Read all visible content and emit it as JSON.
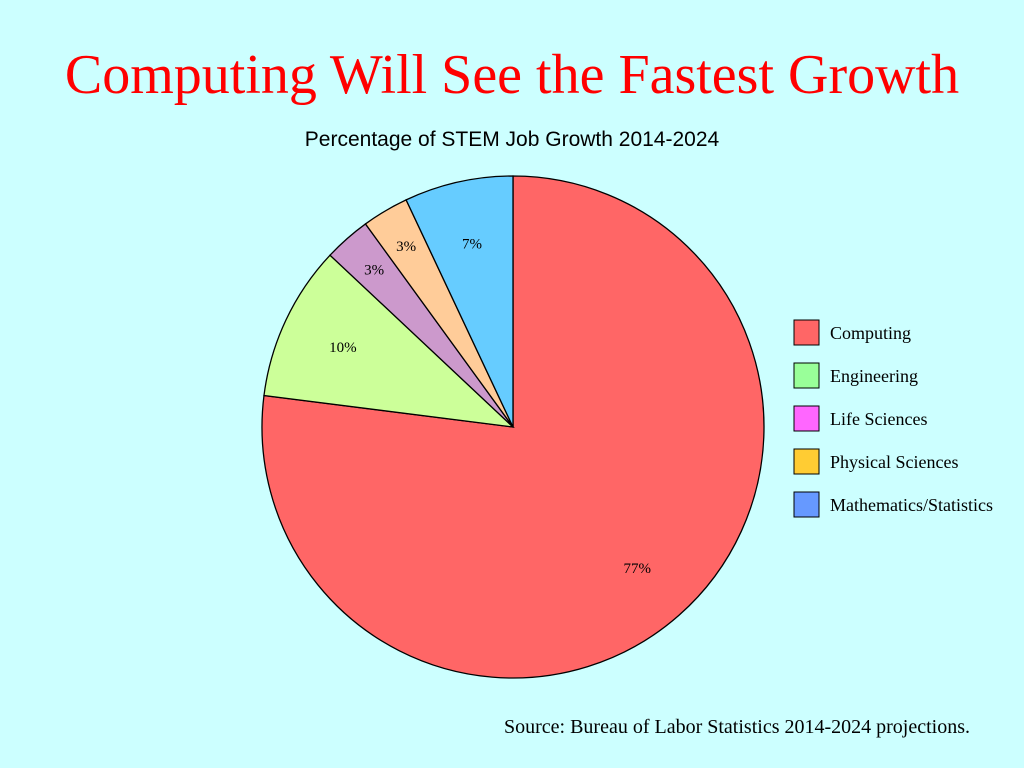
{
  "slide": {
    "title": "Computing Will See the Fastest Growth",
    "source": "Source: Bureau of Labor Statistics 2014-2024 projections."
  },
  "chart_data": {
    "type": "pie",
    "title": "Percentage of STEM Job Growth 2014-2024",
    "start": "12 o'clock",
    "direction": "clockwise",
    "slices": [
      {
        "name": "Computing",
        "value": 77,
        "label": "77%",
        "color": "#ff6666"
      },
      {
        "name": "Engineering",
        "value": 10,
        "label": "10%",
        "color": "#ccff99"
      },
      {
        "name": "Life Sciences",
        "value": 3,
        "label": "3%",
        "color": "#cc99cc"
      },
      {
        "name": "Physical Sciences",
        "value": 3,
        "label": "3%",
        "color": "#ffcc99"
      },
      {
        "name": "Mathematics/Statistics",
        "value": 7,
        "label": "7%",
        "color": "#66ccff"
      }
    ],
    "legend": {
      "placement": "right",
      "entries": [
        {
          "name": "Computing",
          "color": "#ff6666"
        },
        {
          "name": "Engineering",
          "color": "#99ff99"
        },
        {
          "name": "Life Sciences",
          "color": "#ff66ff"
        },
        {
          "name": "Physical Sciences",
          "color": "#ffcc33"
        },
        {
          "name": "Mathematics/Statistics",
          "color": "#6699ff"
        }
      ]
    }
  }
}
